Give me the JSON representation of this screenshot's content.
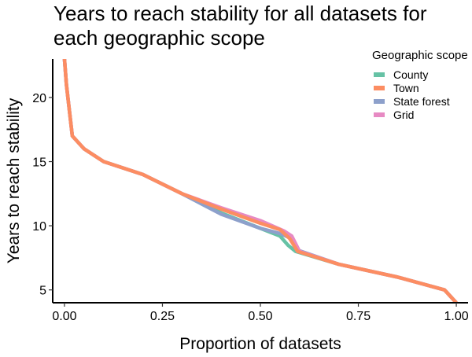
{
  "chart_data": {
    "type": "line",
    "title_lines": [
      "Years to reach stability for all datasets for",
      "each geographic scope"
    ],
    "xlabel": "Proportion of datasets",
    "ylabel": "Years to reach stability",
    "xlim": [
      -0.03,
      1.03
    ],
    "ylim": [
      4,
      23
    ],
    "xticks": [
      0,
      0.25,
      0.5,
      0.75,
      1
    ],
    "xtick_labels": [
      "0.00",
      "0.25",
      "0.50",
      "0.75",
      "1.00"
    ],
    "yticks": [
      5,
      10,
      15,
      20
    ],
    "ytick_labels": [
      "5",
      "10",
      "15",
      "20"
    ],
    "grid": false,
    "legend": {
      "title": "Geographic scope",
      "position": "top-right"
    },
    "series": [
      {
        "name": "County",
        "color": "#66c2a5",
        "x": [
          0,
          0.005,
          0.02,
          0.05,
          0.1,
          0.2,
          0.3,
          0.4,
          0.5,
          0.55,
          0.57,
          0.59,
          0.7,
          0.85,
          0.97,
          1.0
        ],
        "y": [
          23,
          21,
          17,
          16,
          15,
          14,
          12.5,
          11,
          9.8,
          9.2,
          8.5,
          8,
          7,
          6,
          5,
          4
        ]
      },
      {
        "name": "Town",
        "color": "#fc8d62",
        "x": [
          0,
          0.005,
          0.02,
          0.05,
          0.1,
          0.2,
          0.3,
          0.4,
          0.5,
          0.55,
          0.575,
          0.595,
          0.7,
          0.85,
          0.97,
          1.0
        ],
        "y": [
          23,
          21,
          17,
          16,
          15,
          14,
          12.5,
          11.3,
          10.2,
          9.7,
          9.0,
          8.0,
          7,
          6,
          5,
          4
        ]
      },
      {
        "name": "State forest",
        "color": "#8da0cb",
        "x": [
          0,
          0.005,
          0.02,
          0.05,
          0.1,
          0.2,
          0.3,
          0.4,
          0.5,
          0.55,
          0.58,
          0.595,
          0.7,
          0.85,
          0.97,
          1.0
        ],
        "y": [
          23,
          21,
          17,
          16,
          15,
          14,
          12.5,
          10.9,
          9.8,
          9.4,
          9.0,
          8.1,
          7,
          6,
          5,
          4
        ]
      },
      {
        "name": "Grid",
        "color": "#e78ac3",
        "x": [
          0,
          0.005,
          0.02,
          0.05,
          0.1,
          0.2,
          0.3,
          0.4,
          0.5,
          0.56,
          0.58,
          0.6,
          0.7,
          0.85,
          0.97,
          1.0
        ],
        "y": [
          23,
          21,
          17,
          16,
          15,
          14,
          12.5,
          11.4,
          10.4,
          9.6,
          9.2,
          8.0,
          7,
          6,
          5,
          4
        ]
      }
    ],
    "draw_order": [
      "County",
      "State forest",
      "Grid",
      "Town"
    ]
  }
}
